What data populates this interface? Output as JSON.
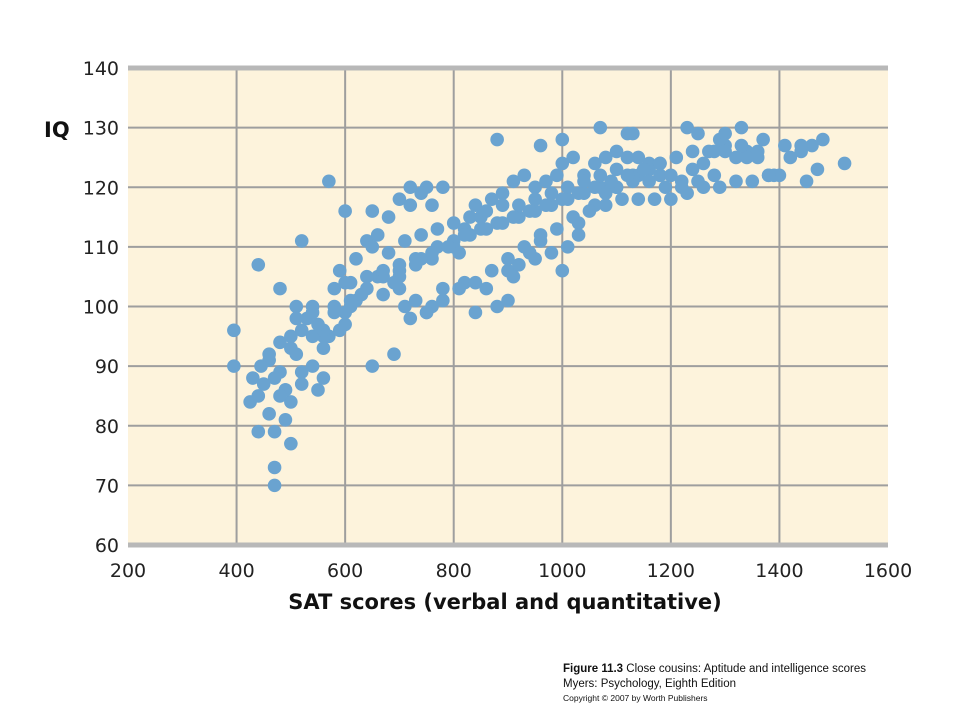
{
  "chart_data": {
    "type": "scatter",
    "xlabel": "SAT scores (verbal and quantitative)",
    "ylabel": "IQ",
    "xlim": [
      200,
      1600
    ],
    "ylim": [
      60,
      140
    ],
    "xticks": [
      "200",
      "400",
      "600",
      "800",
      "1000",
      "1200",
      "1400",
      "1600"
    ],
    "yticks": [
      "60",
      "70",
      "80",
      "90",
      "100",
      "110",
      "120",
      "130",
      "140"
    ],
    "grid": true,
    "colors": {
      "background": "#fdf3dc",
      "grid": "#9e9e9e",
      "frame": "#b8b8b8",
      "point": "#6aa3d0"
    },
    "series": [
      {
        "x": [
          395,
          395,
          440,
          425,
          470,
          470,
          500,
          500,
          470,
          440,
          430,
          490,
          460,
          445,
          480,
          510,
          540,
          550,
          570,
          560,
          520,
          600,
          650,
          720,
          750,
          650,
          690,
          440,
          460,
          490,
          520,
          560,
          570,
          600,
          610,
          600,
          590,
          620,
          640,
          660,
          680,
          700,
          720,
          740,
          760,
          780,
          700,
          730,
          760,
          800,
          820,
          850,
          840,
          870,
          890,
          910,
          930,
          950,
          970,
          990,
          1000,
          1020,
          1040,
          1060,
          1080,
          1100,
          1120,
          1140,
          1160,
          1180,
          1200,
          1220,
          1240,
          1260,
          1280,
          1300,
          1320,
          1340,
          1360,
          1380,
          1400,
          1420,
          1440,
          1460,
          1480,
          1520,
          880,
          960,
          1000,
          1070,
          1120,
          1130,
          1230,
          1250,
          1290,
          1390,
          1450,
          1470,
          1410,
          1440,
          1330,
          1300,
          1370,
          1360,
          1340,
          1030,
          1000,
          900,
          910,
          950,
          980,
          1010,
          1030,
          810,
          820,
          780,
          760,
          880,
          840,
          860,
          900,
          920,
          940,
          960,
          1060,
          1080,
          1100,
          1140,
          1160,
          1180,
          560,
          590,
          600,
          530,
          540,
          580,
          620,
          630,
          670,
          700,
          690,
          660,
          710,
          730,
          750,
          480,
          500,
          520,
          540,
          560,
          510,
          480,
          470,
          490,
          520,
          540,
          500,
          460,
          450,
          480,
          510,
          550,
          580,
          610,
          640,
          670,
          700,
          740,
          770,
          800,
          830,
          860,
          890,
          920,
          950,
          980,
          1010,
          1040,
          1070,
          1100,
          1130,
          1160,
          1190,
          1220,
          1250,
          1280,
          650,
          680,
          710,
          740,
          770,
          800,
          830,
          860,
          890,
          920,
          950,
          980,
          1010,
          1040,
          1070,
          1100,
          1130,
          720,
          750,
          780,
          810,
          840,
          870,
          900,
          930,
          960,
          990,
          1020,
          1050,
          1080,
          1110,
          1140,
          1170,
          1200,
          1230,
          1260,
          1290,
          1320,
          1350,
          1380,
          580,
          610,
          640,
          670,
          700,
          730,
          760,
          790,
          820,
          850,
          880,
          910,
          940,
          970,
          1000,
          1030,
          1060,
          1090,
          1120,
          1150,
          1180,
          1210,
          1240,
          1270,
          1300,
          1330
        ],
        "y": [
          96,
          90,
          107,
          84,
          73,
          70,
          77,
          84,
          79,
          79,
          88,
          81,
          91,
          90,
          103,
          100,
          100,
          86,
          121,
          88,
          111,
          116,
          116,
          120,
          120,
          90,
          92,
          85,
          82,
          86,
          89,
          93,
          95,
          99,
          100,
          104,
          106,
          108,
          111,
          112,
          115,
          118,
          117,
          119,
          117,
          120,
          105,
          107,
          108,
          110,
          113,
          115,
          117,
          118,
          119,
          121,
          122,
          120,
          121,
          122,
          124,
          125,
          122,
          124,
          125,
          126,
          125,
          125,
          124,
          122,
          122,
          121,
          123,
          124,
          126,
          127,
          125,
          126,
          125,
          122,
          122,
          125,
          126,
          127,
          128,
          124,
          128,
          127,
          128,
          130,
          129,
          129,
          130,
          129,
          128,
          122,
          121,
          123,
          127,
          127,
          130,
          129,
          128,
          126,
          125,
          114,
          106,
          106,
          105,
          108,
          109,
          110,
          112,
          109,
          104,
          103,
          100,
          100,
          99,
          103,
          101,
          107,
          109,
          111,
          117,
          119,
          120,
          122,
          123,
          124,
          95,
          96,
          97,
          98,
          99,
          100,
          101,
          102,
          102,
          103,
          104,
          105,
          100,
          101,
          99,
          94,
          95,
          96,
          95,
          96,
          92,
          89,
          88,
          86,
          87,
          90,
          93,
          92,
          87,
          85,
          98,
          97,
          99,
          101,
          103,
          105,
          106,
          108,
          110,
          111,
          112,
          113,
          114,
          115,
          116,
          117,
          118,
          119,
          120,
          120,
          121,
          121,
          120,
          120,
          121,
          122,
          110,
          109,
          111,
          112,
          113,
          114,
          115,
          116,
          117,
          117,
          118,
          119,
          120,
          121,
          122,
          123,
          122,
          98,
          99,
          101,
          103,
          104,
          106,
          108,
          110,
          112,
          113,
          115,
          116,
          117,
          118,
          118,
          118,
          118,
          119,
          120,
          120,
          121,
          121,
          122,
          103,
          104,
          105,
          106,
          107,
          108,
          109,
          110,
          112,
          113,
          114,
          115,
          116,
          117,
          118,
          119,
          120,
          121,
          122,
          123,
          124,
          125,
          126,
          126,
          126,
          127
        ]
      }
    ]
  },
  "caption": {
    "figure_label": "Figure 11.3",
    "figure_text": "Close cousins: Aptitude and intelligence scores",
    "source": "Myers: Psychology, Eighth Edition",
    "copyright": "Copyright © 2007 by Worth Publishers"
  }
}
